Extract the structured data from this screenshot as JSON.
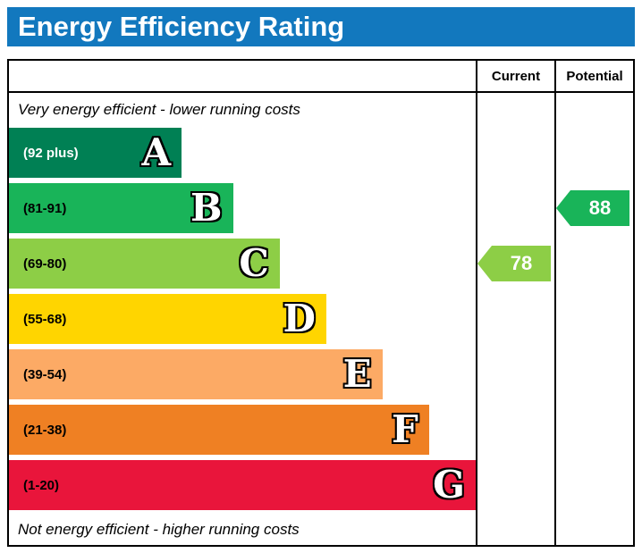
{
  "header": {
    "title": "Energy Efficiency Rating",
    "background": "#1278be"
  },
  "table": {
    "current_label": "Current",
    "potential_label": "Potential"
  },
  "captions": {
    "top": "Very energy efficient - lower running costs",
    "bottom": "Not energy efficient - higher running costs"
  },
  "bands": [
    {
      "letter": "A",
      "range": "(92 plus)",
      "color": "#008054",
      "width_pct": 37,
      "range_text_color": "#ffffff"
    },
    {
      "letter": "B",
      "range": "(81-91)",
      "color": "#19b459",
      "width_pct": 48,
      "range_text_color": "#000000"
    },
    {
      "letter": "C",
      "range": "(69-80)",
      "color": "#8dce46",
      "width_pct": 58,
      "range_text_color": "#000000"
    },
    {
      "letter": "D",
      "range": "(55-68)",
      "color": "#ffd500",
      "width_pct": 68,
      "range_text_color": "#000000"
    },
    {
      "letter": "E",
      "range": "(39-54)",
      "color": "#fcaa65",
      "width_pct": 80,
      "range_text_color": "#000000"
    },
    {
      "letter": "F",
      "range": "(21-38)",
      "color": "#ef8023",
      "width_pct": 90,
      "range_text_color": "#000000"
    },
    {
      "letter": "G",
      "range": "(1-20)",
      "color": "#e9153b",
      "width_pct": 100,
      "range_text_color": "#000000"
    }
  ],
  "ratings": {
    "current": {
      "value": "78",
      "band": "C",
      "color": "#8dce46"
    },
    "potential": {
      "value": "88",
      "band": "B",
      "color": "#19b459"
    }
  },
  "chart_data": {
    "type": "bar",
    "orientation": "horizontal",
    "title": "Energy Efficiency Rating",
    "categories": [
      "A",
      "B",
      "C",
      "D",
      "E",
      "F",
      "G"
    ],
    "band_ranges": [
      "(92 plus)",
      "(81-91)",
      "(69-80)",
      "(55-68)",
      "(39-54)",
      "(21-38)",
      "(1-20)"
    ],
    "band_colors": [
      "#008054",
      "#19b459",
      "#8dce46",
      "#ffd500",
      "#fcaa65",
      "#ef8023",
      "#e9153b"
    ],
    "bar_relative_widths_pct": [
      37,
      48,
      58,
      68,
      80,
      90,
      100
    ],
    "columns": [
      "Current",
      "Potential"
    ],
    "current": {
      "value": 78,
      "band": "C"
    },
    "potential": {
      "value": 88,
      "band": "B"
    },
    "annotations": [
      "Very energy efficient - lower running costs",
      "Not energy efficient - higher running costs"
    ]
  }
}
